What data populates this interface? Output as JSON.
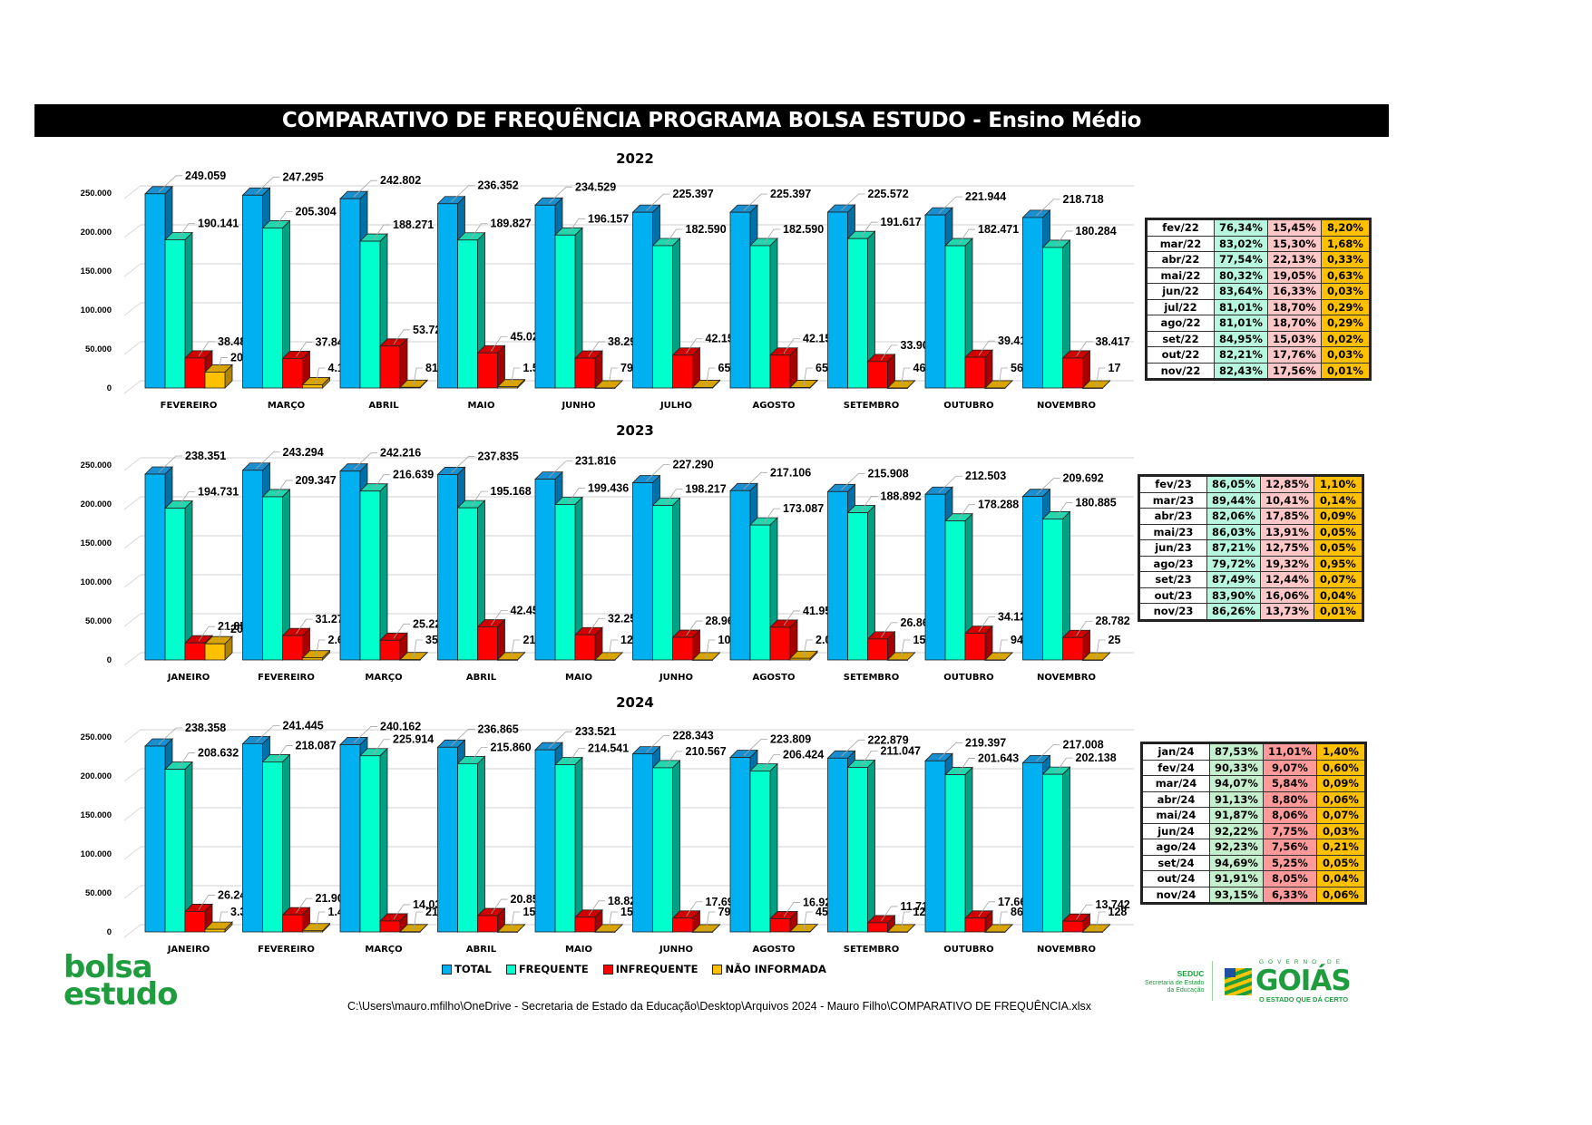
{
  "page": {
    "title": "COMPARATIVO DE FREQUÊNCIA PROGRAMA BOLSA ESTUDO - Ensino Médio",
    "file_path": "C:\\Users\\mauro.mfilho\\OneDrive - Secretaria de Estado da Educação\\Desktop\\Arquivos  2024 - Mauro Filho\\COMPARATIVO DE FREQUÊNCIA.xlsx",
    "logo_left": {
      "line1": "bolsa",
      "line2": "estudo"
    },
    "logo_seduc": {
      "name": "SEDUC",
      "line1": "Secretaria de Estado",
      "line2": "da Educação"
    },
    "logo_goias": {
      "top": "GOVERNO DE",
      "name": "GOIÁS",
      "slogan": "O ESTADO QUE DÁ CERTO"
    },
    "colors": {
      "total": "#00b0f0",
      "frequente": "#00ffcc",
      "infrequente": "#ff0000",
      "nao_informada": "#ffc000"
    }
  },
  "legend": [
    {
      "label": "TOTAL",
      "color": "#00b0f0"
    },
    {
      "label": "FREQUENTE",
      "color": "#00ffcc"
    },
    {
      "label": "INFREQUENTE",
      "color": "#ff0000"
    },
    {
      "label": "NÃO INFORMADA",
      "color": "#ffc000"
    }
  ],
  "chart_data": [
    {
      "type": "bar",
      "title": "2022",
      "ylim": [
        0,
        250000
      ],
      "yticks": [
        "0",
        "50.000",
        "100.000",
        "150.000",
        "200.000",
        "250.000"
      ],
      "grid": true,
      "legend": "bottom",
      "categories": [
        "FEVEREIRO",
        "MARÇO",
        "ABRIL",
        "MAIO",
        "JUNHO",
        "JULHO",
        "AGOSTO",
        "SETEMBRO",
        "OUTUBRO",
        "NOVEMBRO"
      ],
      "series": [
        {
          "name": "TOTAL",
          "values": [
            249059,
            247295,
            242802,
            236352,
            234529,
            225397,
            225397,
            225572,
            221944,
            218718
          ],
          "labels": [
            "249.059",
            "247.295",
            "242.802",
            "236.352",
            "234.529",
            "225.397",
            "225.397",
            "225.572",
            "221.944",
            "218.718"
          ]
        },
        {
          "name": "FREQUENTE",
          "values": [
            190141,
            205304,
            188271,
            189827,
            196157,
            182590,
            182590,
            191617,
            182471,
            180284
          ],
          "labels": [
            "190.141",
            "205.304",
            "188.271",
            "189.827",
            "196.157",
            "182.590",
            "182.590",
            "191.617",
            "182.471",
            "180.284"
          ]
        },
        {
          "name": "INFREQUENTE",
          "values": [
            38488,
            37846,
            53720,
            45025,
            38293,
            42157,
            42157,
            33909,
            39417,
            38417
          ],
          "labels": [
            "38.488",
            "37.846",
            "53.720",
            "45.025",
            "38.293",
            "42.157",
            "42.157",
            "33.909",
            "39.417",
            "38.417"
          ]
        },
        {
          "name": "NÃO INFORMADA",
          "values": [
            20430,
            4145,
            811,
            1500,
            79,
            650,
            650,
            46,
            56,
            17
          ],
          "labels": [
            "20.430",
            "4.145",
            "811",
            "1.500",
            "79",
            "650",
            "650",
            "46",
            "56",
            "17"
          ]
        }
      ],
      "table": [
        [
          "fev/22",
          "76,34%",
          "15,45%",
          "8,20%"
        ],
        [
          "mar/22",
          "83,02%",
          "15,30%",
          "1,68%"
        ],
        [
          "abr/22",
          "77,54%",
          "22,13%",
          "0,33%"
        ],
        [
          "mai/22",
          "80,32%",
          "19,05%",
          "0,63%"
        ],
        [
          "jun/22",
          "83,64%",
          "16,33%",
          "0,03%"
        ],
        [
          "jul/22",
          "81,01%",
          "18,70%",
          "0,29%"
        ],
        [
          "ago/22",
          "81,01%",
          "18,70%",
          "0,29%"
        ],
        [
          "set/22",
          "84,95%",
          "15,03%",
          "0,02%"
        ],
        [
          "out/22",
          "82,21%",
          "17,76%",
          "0,03%"
        ],
        [
          "nov/22",
          "82,43%",
          "17,56%",
          "0,01%"
        ]
      ]
    },
    {
      "type": "bar",
      "title": "2023",
      "ylim": [
        0,
        250000
      ],
      "yticks": [
        "0",
        "50.000",
        "100.000",
        "150.000",
        "200.000",
        "250.000"
      ],
      "grid": true,
      "legend": "bottom",
      "categories": [
        "JANEIRO",
        "FEVEREIRO",
        "MARÇO",
        "ABRIL",
        "MAIO",
        "JUNHO",
        "AGOSTO",
        "SETEMBRO",
        "OUTUBRO",
        "NOVEMBRO"
      ],
      "series": [
        {
          "name": "TOTAL",
          "values": [
            238351,
            243294,
            242216,
            237835,
            231816,
            227290,
            217106,
            215908,
            212503,
            209692
          ],
          "labels": [
            "238.351",
            "243.294",
            "242.216",
            "237.835",
            "231.816",
            "227.290",
            "217.106",
            "215.908",
            "212.503",
            "209.692"
          ]
        },
        {
          "name": "FREQUENTE",
          "values": [
            194731,
            209347,
            216639,
            195168,
            199436,
            198217,
            173087,
            188892,
            178288,
            180885
          ],
          "labels": [
            "194.731",
            "209.347",
            "216.639",
            "195.168",
            "199.436",
            "198.217",
            "173.087",
            "188.892",
            "178.288",
            "180.885"
          ]
        },
        {
          "name": "INFREQUENTE",
          "values": [
            21850,
            31270,
            25226,
            42453,
            32253,
            28969,
            41954,
            26864,
            34121,
            28782
          ],
          "labels": [
            "21.850",
            "31.270",
            "25.226",
            "42.453",
            "32.253",
            "28.969",
            "41.954",
            "26.864",
            "34.121",
            "28.782"
          ]
        },
        {
          "name": "NÃO INFORMADA",
          "values": [
            20696,
            2677,
            351,
            214,
            127,
            104,
            2065,
            152,
            94,
            25
          ],
          "labels": [
            "20.696",
            "2.677",
            "351",
            "214",
            "127",
            "104",
            "2.065",
            "152",
            "94",
            "25"
          ]
        }
      ],
      "table": [
        [
          "fev/23",
          "86,05%",
          "12,85%",
          "1,10%"
        ],
        [
          "mar/23",
          "89,44%",
          "10,41%",
          "0,14%"
        ],
        [
          "abr/23",
          "82,06%",
          "17,85%",
          "0,09%"
        ],
        [
          "mai/23",
          "86,03%",
          "13,91%",
          "0,05%"
        ],
        [
          "jun/23",
          "87,21%",
          "12,75%",
          "0,05%"
        ],
        [
          "ago/23",
          "79,72%",
          "19,32%",
          "0,95%"
        ],
        [
          "set/23",
          "87,49%",
          "12,44%",
          "0,07%"
        ],
        [
          "out/23",
          "83,90%",
          "16,06%",
          "0,04%"
        ],
        [
          "nov/23",
          "86,26%",
          "13,73%",
          "0,01%"
        ]
      ]
    },
    {
      "type": "bar",
      "title": "2024",
      "ylim": [
        0,
        250000
      ],
      "yticks": [
        "0",
        "50.000",
        "100.000",
        "150.000",
        "200.000",
        "250.000"
      ],
      "grid": true,
      "legend": "bottom",
      "categories": [
        "JANEIRO",
        "FEVEREIRO",
        "MARÇO",
        "ABRIL",
        "MAIO",
        "JUNHO",
        "AGOSTO",
        "SETEMBRO",
        "OUTUBRO",
        "NOVEMBRO"
      ],
      "series": [
        {
          "name": "TOTAL",
          "values": [
            238358,
            241445,
            240162,
            236865,
            233521,
            228343,
            223809,
            222879,
            219397,
            217008
          ],
          "labels": [
            "238.358",
            "241.445",
            "240.162",
            "236.865",
            "233.521",
            "228.343",
            "223.809",
            "222.879",
            "219.397",
            "217.008"
          ]
        },
        {
          "name": "FREQUENTE",
          "values": [
            208632,
            218087,
            225914,
            215860,
            214541,
            210567,
            206424,
            211047,
            201643,
            202138
          ],
          "labels": [
            "208.632",
            "218.087",
            "225.914",
            "215.860",
            "214.541",
            "210.567",
            "206.424",
            "211.047",
            "201.643",
            "202.138"
          ]
        },
        {
          "name": "INFREQUENTE",
          "values": [
            26248,
            21909,
            14037,
            20853,
            18826,
            17697,
            16926,
            11710,
            17668,
            13742
          ],
          "labels": [
            "26.248",
            "21.909",
            "14.037",
            "20.853",
            "18.826",
            "17.697",
            "16.926",
            "11.710",
            "17.668",
            "13.742"
          ]
        },
        {
          "name": "NÃO INFORMADA",
          "values": [
            3340,
            1449,
            211,
            152,
            154,
            79,
            459,
            122,
            86,
            128
          ],
          "labels": [
            "3.340",
            "1.449",
            "211",
            "152",
            "154",
            "79",
            "459",
            "122",
            "86",
            "128"
          ]
        }
      ],
      "table": [
        [
          "jan/24",
          "87,53%",
          "11,01%",
          "1,40%"
        ],
        [
          "fev/24",
          "90,33%",
          "9,07%",
          "0,60%"
        ],
        [
          "mar/24",
          "94,07%",
          "5,84%",
          "0,09%"
        ],
        [
          "abr/24",
          "91,13%",
          "8,80%",
          "0,06%"
        ],
        [
          "mai/24",
          "91,87%",
          "8,06%",
          "0,07%"
        ],
        [
          "jun/24",
          "92,22%",
          "7,75%",
          "0,03%"
        ],
        [
          "ago/24",
          "92,23%",
          "7,56%",
          "0,21%"
        ],
        [
          "set/24",
          "94,69%",
          "5,25%",
          "0,05%"
        ],
        [
          "out/24",
          "91,91%",
          "8,05%",
          "0,04%"
        ],
        [
          "nov/24",
          "93,15%",
          "6,33%",
          "0,06%"
        ]
      ]
    }
  ]
}
